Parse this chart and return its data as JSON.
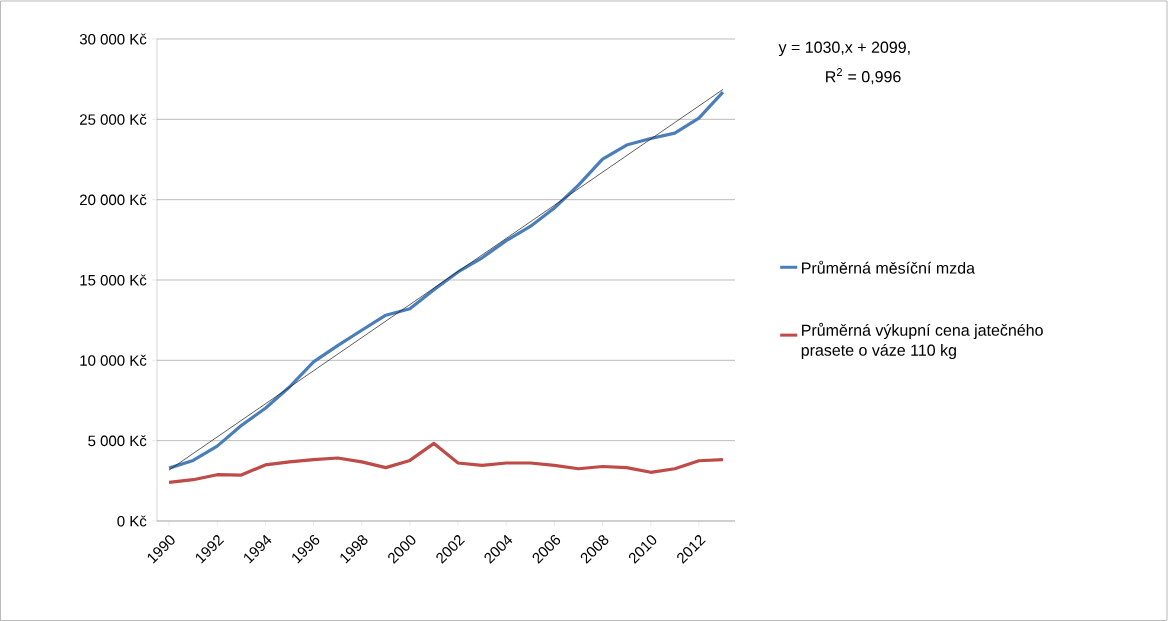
{
  "chart_data": {
    "type": "line",
    "x": [
      1990,
      1991,
      1992,
      1993,
      1994,
      1995,
      1996,
      1997,
      1998,
      1999,
      2000,
      2001,
      2002,
      2003,
      2004,
      2005,
      2006,
      2007,
      2008,
      2009,
      2010,
      2011,
      2012,
      2013
    ],
    "series": [
      {
        "name": "Průměrná měsíční mzda",
        "color": "#4a7ebb",
        "values": [
          3290,
          3770,
          4660,
          5940,
          7020,
          8340,
          9900,
          10910,
          11870,
          12810,
          13210,
          14400,
          15500,
          16380,
          17450,
          18330,
          19480,
          20900,
          22520,
          23400,
          23810,
          24140,
          25070,
          26690
        ]
      },
      {
        "name": "Průměrná výkupní cena jatečného prasete o váze 110 kg",
        "color": "#be4b48",
        "values": [
          2400,
          2570,
          2880,
          2860,
          3490,
          3680,
          3820,
          3920,
          3680,
          3320,
          3770,
          4830,
          3610,
          3460,
          3610,
          3610,
          3460,
          3250,
          3390,
          3320,
          3030,
          3250,
          3750,
          3820
        ]
      },
      {
        "type": "line",
        "color": "#1a1a1a",
        "x": [
          1990,
          2013
        ],
        "values": [
          3170,
          26860
        ]
      }
    ],
    "xlim": [
      1989.5,
      2013.5
    ],
    "xticks": [
      1990,
      1992,
      1994,
      1996,
      1998,
      2000,
      2002,
      2004,
      2006,
      2008,
      2010,
      2012
    ],
    "ylim": [
      0,
      30000
    ],
    "yticks": [
      {
        "value": 0,
        "label": "0 Kč"
      },
      {
        "value": 5000,
        "label": "5 000 Kč"
      },
      {
        "value": 10000,
        "label": "10 000 Kč"
      },
      {
        "value": 15000,
        "label": "15 000 Kč"
      },
      {
        "value": 20000,
        "label": "20 000 Kč"
      },
      {
        "value": 25000,
        "label": "25 000 Kč"
      },
      {
        "value": 30000,
        "label": "30 000 Kč"
      }
    ],
    "grid": "y",
    "legend": "right",
    "annotations": [
      "y = 1030,x + 2099,",
      "R$^{2}$ = 0,996"
    ]
  }
}
